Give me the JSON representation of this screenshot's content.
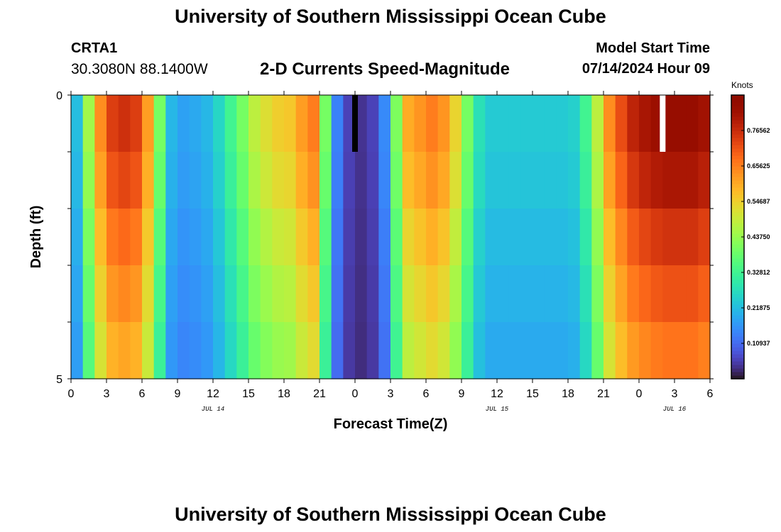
{
  "header": {
    "title": "University of Southern Mississippi Ocean Cube",
    "station_id": "CRTA1",
    "coordinates": "30.3080N  88.1400W",
    "subtitle": "2-D Currents Speed-Magnitude",
    "model_start_label": "Model Start Time",
    "model_start_value": "07/14/2024 Hour 09"
  },
  "footer": {
    "title": "University of Southern Mississippi Ocean Cube"
  },
  "chart_data": {
    "type": "heatmap",
    "title": "2-D Currents Speed-Magnitude",
    "xlabel": "Forecast Time(Z)",
    "ylabel": "Depth (ft)",
    "x_hours_range": [
      0,
      54
    ],
    "y_range": [
      0,
      5
    ],
    "y_tick_labels": [
      "0",
      "5"
    ],
    "x_tick_labels": [
      "0",
      "3",
      "6",
      "9",
      "12",
      "15",
      "18",
      "21",
      "0",
      "3",
      "6",
      "9",
      "12",
      "15",
      "18",
      "21",
      "0",
      "3",
      "6"
    ],
    "date_labels": [
      {
        "text": "JUL 14",
        "hour": 12
      },
      {
        "text": "JUL 15",
        "hour": 36
      },
      {
        "text": "JUL 16",
        "hour": 51
      }
    ],
    "colorbar": {
      "unit": "Knots",
      "min": 0.0,
      "max": 0.875,
      "tick_labels": [
        "0.10937",
        "0.21875",
        "0.32812",
        "0.43750",
        "0.54687",
        "0.65625",
        "0.76562"
      ],
      "tick_values": [
        0.109375,
        0.21875,
        0.328125,
        0.4375,
        0.546875,
        0.65625,
        0.765625
      ]
    },
    "depth_layers": 5,
    "time_columns": 54,
    "speed_knots_surface": [
      0.22,
      0.45,
      0.64,
      0.74,
      0.76,
      0.74,
      0.62,
      0.4,
      0.21,
      0.18,
      0.19,
      0.21,
      0.26,
      0.33,
      0.4,
      0.48,
      0.52,
      0.55,
      0.56,
      0.62,
      0.66,
      0.4,
      0.14,
      0.06,
      0.04,
      0.06,
      0.15,
      0.41,
      0.6,
      0.63,
      0.66,
      0.63,
      0.54,
      0.4,
      0.28,
      0.24,
      0.24,
      0.24,
      0.24,
      0.24,
      0.24,
      0.24,
      0.25,
      0.33,
      0.48,
      0.64,
      0.72,
      0.78,
      0.81,
      0.83,
      0.84,
      0.84,
      0.84,
      0.82
    ],
    "depth_factors": [
      1.0,
      0.96,
      0.9,
      0.85,
      0.8
    ],
    "missing_cells": [
      {
        "hour": 24,
        "depth_layer": 0,
        "color": "#000000"
      },
      {
        "hour": 50,
        "depth_layer": 0,
        "color": "#ffffff"
      }
    ]
  }
}
